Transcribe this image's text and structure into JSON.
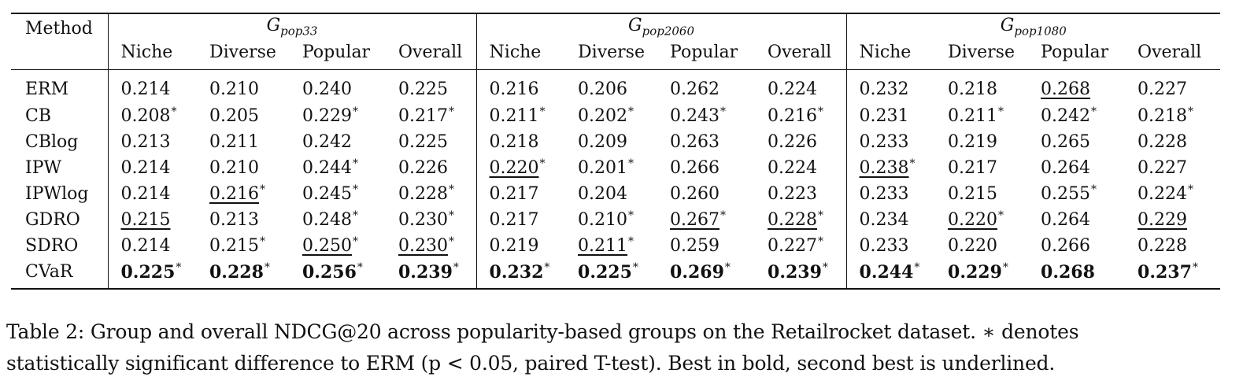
{
  "table": {
    "method_header": "Method",
    "groups": [
      {
        "base": "G",
        "sub": "pop33"
      },
      {
        "base": "G",
        "sub": "pop2060"
      },
      {
        "base": "G",
        "sub": "pop1080"
      }
    ],
    "subcolumns": [
      "Niche",
      "Diverse",
      "Popular",
      "Overall"
    ],
    "rows": [
      {
        "method": "ERM",
        "cells": [
          {
            "v": "0.214"
          },
          {
            "v": "0.210"
          },
          {
            "v": "0.240"
          },
          {
            "v": "0.225"
          },
          {
            "v": "0.216"
          },
          {
            "v": "0.206"
          },
          {
            "v": "0.262"
          },
          {
            "v": "0.224"
          },
          {
            "v": "0.232"
          },
          {
            "v": "0.218"
          },
          {
            "v": "0.268",
            "ul": true
          },
          {
            "v": "0.227"
          }
        ]
      },
      {
        "method": "CB",
        "cells": [
          {
            "v": "0.208",
            "star": true
          },
          {
            "v": "0.205"
          },
          {
            "v": "0.229",
            "star": true
          },
          {
            "v": "0.217",
            "star": true
          },
          {
            "v": "0.211",
            "star": true
          },
          {
            "v": "0.202",
            "star": true
          },
          {
            "v": "0.243",
            "star": true
          },
          {
            "v": "0.216",
            "star": true
          },
          {
            "v": "0.231"
          },
          {
            "v": "0.211",
            "star": true
          },
          {
            "v": "0.242",
            "star": true
          },
          {
            "v": "0.218",
            "star": true
          }
        ]
      },
      {
        "method": "CBlog",
        "cells": [
          {
            "v": "0.213"
          },
          {
            "v": "0.211"
          },
          {
            "v": "0.242"
          },
          {
            "v": "0.225"
          },
          {
            "v": "0.218"
          },
          {
            "v": "0.209"
          },
          {
            "v": "0.263"
          },
          {
            "v": "0.226"
          },
          {
            "v": "0.233"
          },
          {
            "v": "0.219"
          },
          {
            "v": "0.265"
          },
          {
            "v": "0.228"
          }
        ]
      },
      {
        "method": "IPW",
        "cells": [
          {
            "v": "0.214"
          },
          {
            "v": "0.210"
          },
          {
            "v": "0.244",
            "star": true
          },
          {
            "v": "0.226"
          },
          {
            "v": "0.220",
            "star": true,
            "ul": true
          },
          {
            "v": "0.201",
            "star": true
          },
          {
            "v": "0.266"
          },
          {
            "v": "0.224"
          },
          {
            "v": "0.238",
            "star": true,
            "ul": true
          },
          {
            "v": "0.217"
          },
          {
            "v": "0.264"
          },
          {
            "v": "0.227"
          }
        ]
      },
      {
        "method": "IPWlog",
        "cells": [
          {
            "v": "0.214"
          },
          {
            "v": "0.216",
            "star": true,
            "ul": true
          },
          {
            "v": "0.245",
            "star": true
          },
          {
            "v": "0.228",
            "star": true
          },
          {
            "v": "0.217"
          },
          {
            "v": "0.204"
          },
          {
            "v": "0.260"
          },
          {
            "v": "0.223"
          },
          {
            "v": "0.233"
          },
          {
            "v": "0.215"
          },
          {
            "v": "0.255",
            "star": true
          },
          {
            "v": "0.224",
            "star": true
          }
        ]
      },
      {
        "method": "GDRO",
        "cells": [
          {
            "v": "0.215",
            "ul": true
          },
          {
            "v": "0.213"
          },
          {
            "v": "0.248",
            "star": true
          },
          {
            "v": "0.230",
            "star": true
          },
          {
            "v": "0.217"
          },
          {
            "v": "0.210",
            "star": true
          },
          {
            "v": "0.267",
            "star": true,
            "ul": true
          },
          {
            "v": "0.228",
            "star": true,
            "ul": true
          },
          {
            "v": "0.234"
          },
          {
            "v": "0.220",
            "star": true,
            "ul": true
          },
          {
            "v": "0.264"
          },
          {
            "v": "0.229",
            "ul": true
          }
        ]
      },
      {
        "method": "SDRO",
        "cells": [
          {
            "v": "0.214"
          },
          {
            "v": "0.215",
            "star": true
          },
          {
            "v": "0.250",
            "star": true,
            "ul": true
          },
          {
            "v": "0.230",
            "star": true,
            "ul": true
          },
          {
            "v": "0.219"
          },
          {
            "v": "0.211",
            "star": true,
            "ul": true
          },
          {
            "v": "0.259"
          },
          {
            "v": "0.227",
            "star": true
          },
          {
            "v": "0.233"
          },
          {
            "v": "0.220"
          },
          {
            "v": "0.266"
          },
          {
            "v": "0.228"
          }
        ]
      },
      {
        "method": "CVaR",
        "cells": [
          {
            "v": "0.225",
            "star": true,
            "bold": true
          },
          {
            "v": "0.228",
            "star": true,
            "bold": true
          },
          {
            "v": "0.256",
            "star": true,
            "bold": true
          },
          {
            "v": "0.239",
            "star": true,
            "bold": true
          },
          {
            "v": "0.232",
            "star": true,
            "bold": true
          },
          {
            "v": "0.225",
            "star": true,
            "bold": true
          },
          {
            "v": "0.269",
            "star": true,
            "bold": true
          },
          {
            "v": "0.239",
            "star": true,
            "bold": true
          },
          {
            "v": "0.244",
            "star": true,
            "bold": true
          },
          {
            "v": "0.229",
            "star": true,
            "bold": true
          },
          {
            "v": "0.268",
            "bold": true
          },
          {
            "v": "0.237",
            "star": true,
            "bold": true
          }
        ]
      }
    ]
  },
  "caption": {
    "line1": "Table 2: Group and overall NDCG@20 across popularity-based groups on the Retailrocket dataset. ∗ denotes",
    "line2": "statistically significant difference to ERM (p < 0.05, paired T-test). Best in bold, second best is underlined."
  }
}
